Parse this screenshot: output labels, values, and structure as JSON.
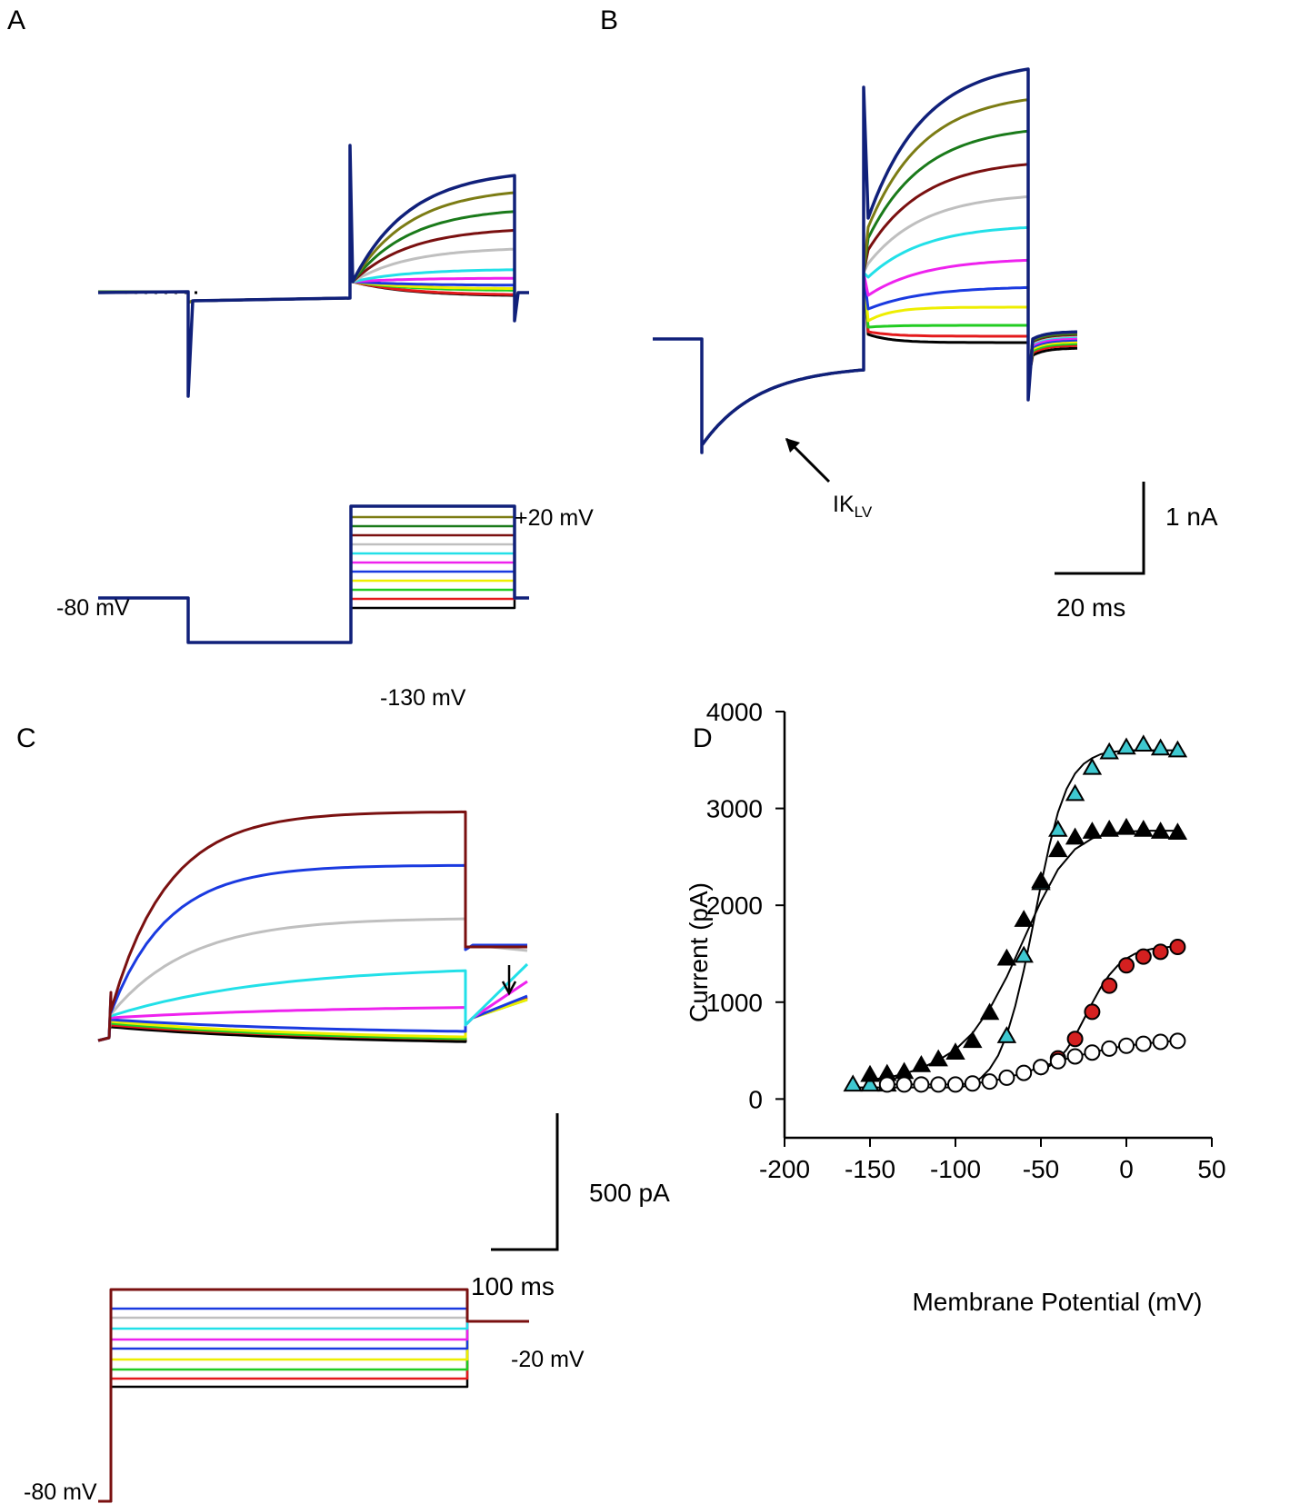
{
  "panels": {
    "a": "A",
    "b": "B",
    "c": "C",
    "d": "D"
  },
  "trace_colors": [
    "#000000",
    "#e41a1c",
    "#22cc22",
    "#eeee00",
    "#1a3ae0",
    "#ee22ee",
    "#22e0e8",
    "#bfbfbf",
    "#7a1010",
    "#1a7a1a",
    "#7c7c14",
    "#10207a"
  ],
  "panel_a": {
    "v_hold": "-80 mV",
    "v_pre": "-130 mV",
    "v_max": "+20 mV"
  },
  "panel_b": {
    "annotation_main": "IK",
    "annotation_sub": "LV",
    "scale_y": "1 nA",
    "scale_x": "20 ms"
  },
  "panel_c": {
    "scale_y": "500 pA",
    "scale_x": "100 ms",
    "v_max": "-20 mV",
    "v_hold": "-80 mV",
    "trace_colors": [
      "#000000",
      "#e41a1c",
      "#22cc22",
      "#eeee00",
      "#1a3ae0",
      "#ee22ee",
      "#22e0e8",
      "#bfbfbf",
      "#1a3ae0",
      "#7a1010"
    ]
  },
  "chart_data": {
    "type": "scatter",
    "xlabel": "Membrane Potential (mV)",
    "ylabel": "Current (pA)",
    "xlim": [
      -200,
      50
    ],
    "ylim": [
      -400,
      4000
    ],
    "xticks": [
      -200,
      -150,
      -100,
      -50,
      0,
      50
    ],
    "yticks": [
      0,
      1000,
      2000,
      3000,
      4000
    ],
    "series": [
      {
        "name": "cyan triangles",
        "marker": "triangle",
        "color": "#3ec8d0",
        "x": [
          -160,
          -150,
          -140,
          -70,
          -60,
          -50,
          -40,
          -30,
          -20,
          -10,
          0,
          10,
          20,
          30
        ],
        "y": [
          150,
          150,
          150,
          650,
          1480,
          2230,
          2780,
          3150,
          3420,
          3580,
          3630,
          3660,
          3620,
          3600
        ],
        "fit_x": [
          -160,
          -100,
          -95,
          -90,
          -85,
          -80,
          -75,
          -70,
          -65,
          -60,
          -55,
          -50,
          -45,
          -40,
          -35,
          -30,
          -25,
          -20,
          -15,
          -10,
          -5,
          0,
          10,
          20,
          30
        ],
        "fit_y": [
          120,
          120,
          130,
          160,
          220,
          310,
          450,
          660,
          960,
          1330,
          1760,
          2210,
          2620,
          2960,
          3200,
          3360,
          3460,
          3520,
          3560,
          3580,
          3590,
          3600,
          3600,
          3600,
          3600
        ]
      },
      {
        "name": "black triangles",
        "marker": "triangle",
        "color": "#000000",
        "x": [
          -150,
          -140,
          -130,
          -120,
          -110,
          -100,
          -90,
          -80,
          -70,
          -60,
          -50,
          -40,
          -30,
          -20,
          -10,
          0,
          10,
          20,
          30
        ],
        "y": [
          250,
          260,
          280,
          350,
          410,
          480,
          600,
          890,
          1450,
          1850,
          2250,
          2570,
          2700,
          2760,
          2780,
          2800,
          2780,
          2760,
          2750
        ],
        "fit_x": [
          -150,
          -140,
          -130,
          -120,
          -110,
          -100,
          -90,
          -80,
          -70,
          -60,
          -50,
          -40,
          -30,
          -20,
          -10,
          0,
          10,
          20,
          30
        ],
        "fit_y": [
          200,
          220,
          260,
          320,
          400,
          510,
          680,
          930,
          1260,
          1650,
          2040,
          2370,
          2580,
          2690,
          2740,
          2760,
          2770,
          2770,
          2770
        ]
      },
      {
        "name": "red circles",
        "marker": "circle",
        "color": "#d42020",
        "x": [
          -50,
          -40,
          -30,
          -20,
          -10,
          0,
          10,
          20,
          30
        ],
        "y": [
          330,
          420,
          620,
          900,
          1170,
          1380,
          1470,
          1520,
          1570
        ],
        "fit_x": [
          -50,
          -45,
          -40,
          -35,
          -30,
          -25,
          -20,
          -15,
          -10,
          -5,
          0,
          5,
          10,
          15,
          20,
          25,
          30
        ],
        "fit_y": [
          300,
          340,
          410,
          510,
          650,
          820,
          990,
          1150,
          1280,
          1380,
          1450,
          1500,
          1530,
          1550,
          1560,
          1570,
          1570
        ]
      },
      {
        "name": "open circles",
        "marker": "open-circle",
        "color": "#ffffff",
        "x": [
          -140,
          -130,
          -120,
          -110,
          -100,
          -90,
          -80,
          -70,
          -60,
          -50,
          -40,
          -30,
          -20,
          -10,
          0,
          10,
          20,
          30
        ],
        "y": [
          150,
          150,
          150,
          150,
          150,
          160,
          180,
          220,
          270,
          330,
          390,
          440,
          480,
          520,
          550,
          570,
          590,
          600
        ],
        "fit_x": [
          -140,
          -100,
          -90,
          -80,
          -70,
          -60,
          -50,
          -40,
          -30,
          -20,
          -10,
          0,
          10,
          20,
          30
        ],
        "fit_y": [
          150,
          150,
          160,
          180,
          220,
          270,
          330,
          390,
          440,
          480,
          520,
          550,
          570,
          590,
          600
        ]
      }
    ]
  }
}
